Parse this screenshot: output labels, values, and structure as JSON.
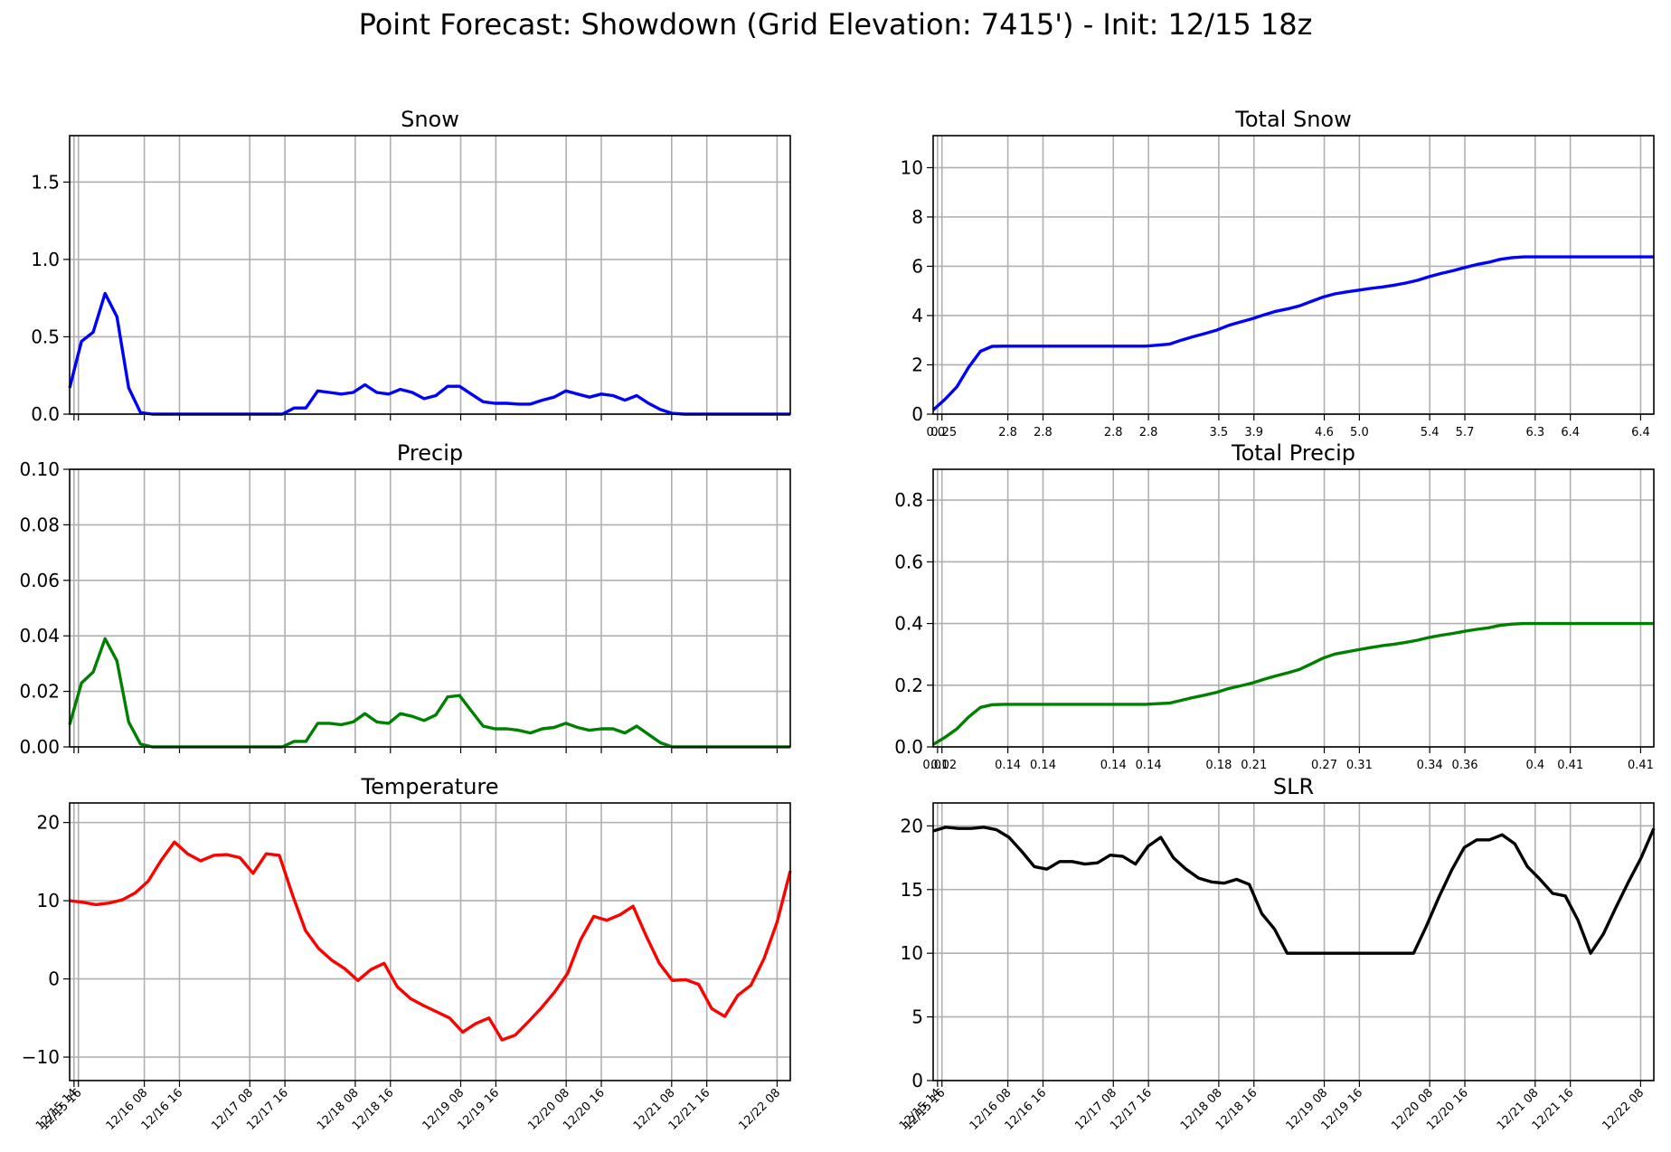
{
  "title": "Point Forecast: Showdown (Grid Elevation: 7415') - Init: 12/15 18z",
  "time_ticks": [
    "12/15 14",
    "12/15 16",
    "12/16 08",
    "12/16 16",
    "12/17 08",
    "12/17 16",
    "12/18 08",
    "12/18 16",
    "12/19 08",
    "12/19 16",
    "12/20 08",
    "12/20 16",
    "12/21 08",
    "12/21 16",
    "12/22 08"
  ],
  "colors": {
    "snow": "#0000ff",
    "precip": "#008000",
    "temperature": "#ff0000",
    "slr": "#000000",
    "grid": "#b0b0b0"
  },
  "chart_data": [
    {
      "id": "snow",
      "type": "line",
      "title": "Snow",
      "ylim": [
        0,
        1.8
      ],
      "yticks": [
        "0.0",
        "0.5",
        "1.0",
        "1.5"
      ],
      "xlim": [
        0,
        61
      ],
      "grid": true,
      "x_tick_labels": "time_ticks",
      "x_tick_labels_visible": false,
      "series": [
        {
          "values": [
            0.17,
            0.47,
            0.53,
            0.78,
            0.63,
            0.17,
            0.01,
            0,
            0,
            0,
            0,
            0,
            0,
            0,
            0,
            0,
            0,
            0,
            0,
            0.04,
            0.04,
            0.15,
            0.14,
            0.13,
            0.14,
            0.19,
            0.14,
            0.13,
            0.16,
            0.14,
            0.1,
            0.12,
            0.18,
            0.18,
            0.13,
            0.08,
            0.07,
            0.07,
            0.065,
            0.065,
            0.09,
            0.11,
            0.15,
            0.13,
            0.11,
            0.13,
            0.12,
            0.09,
            0.12,
            0.07,
            0.03,
            0.005,
            0,
            0,
            0,
            0,
            0,
            0,
            0,
            0,
            0,
            0
          ]
        }
      ]
    },
    {
      "id": "total_snow",
      "type": "line",
      "title": "Total Snow",
      "ylim": [
        0,
        11.3
      ],
      "yticks": [
        "0",
        "2",
        "4",
        "6",
        "8",
        "10"
      ],
      "xlim": [
        0,
        61
      ],
      "grid": true,
      "x_tick_labels": [
        "0.0",
        "0.25",
        "2.8",
        "2.8",
        "2.8",
        "2.8",
        "3.5",
        "3.9",
        "4.6",
        "5.0",
        "5.4",
        "5.7",
        "6.3",
        "6.4",
        "6.4"
      ],
      "series": [
        {
          "values": [
            0.17,
            0.6,
            1.1,
            1.9,
            2.55,
            2.75,
            2.76,
            2.76,
            2.76,
            2.76,
            2.76,
            2.76,
            2.76,
            2.76,
            2.76,
            2.76,
            2.76,
            2.76,
            2.76,
            2.8,
            2.84,
            3.0,
            3.14,
            3.27,
            3.41,
            3.6,
            3.74,
            3.87,
            4.03,
            4.17,
            4.27,
            4.39,
            4.57,
            4.75,
            4.88,
            4.96,
            5.03,
            5.1,
            5.16,
            5.23,
            5.32,
            5.43,
            5.58,
            5.71,
            5.82,
            5.95,
            6.07,
            6.16,
            6.28,
            6.35,
            6.38,
            6.38,
            6.38,
            6.38,
            6.38,
            6.38,
            6.38,
            6.38,
            6.38,
            6.38,
            6.38,
            6.38
          ]
        }
      ]
    },
    {
      "id": "precip",
      "type": "line",
      "title": "Precip",
      "ylim": [
        0,
        0.1
      ],
      "yticks": [
        "0.00",
        "0.02",
        "0.04",
        "0.06",
        "0.08",
        "0.10"
      ],
      "xlim": [
        0,
        61
      ],
      "grid": true,
      "x_tick_labels": "time_ticks",
      "x_tick_labels_visible": false,
      "series": [
        {
          "values": [
            0.008,
            0.023,
            0.027,
            0.039,
            0.031,
            0.009,
            0.001,
            0,
            0,
            0,
            0,
            0,
            0,
            0,
            0,
            0,
            0,
            0,
            0,
            0.002,
            0.002,
            0.0085,
            0.0085,
            0.008,
            0.009,
            0.012,
            0.009,
            0.0085,
            0.012,
            0.011,
            0.0095,
            0.0115,
            0.018,
            0.0185,
            0.013,
            0.0075,
            0.0065,
            0.0065,
            0.006,
            0.005,
            0.0065,
            0.007,
            0.0085,
            0.007,
            0.006,
            0.0065,
            0.0065,
            0.005,
            0.0075,
            0.0045,
            0.0015,
            0,
            0,
            0,
            0,
            0,
            0,
            0,
            0,
            0,
            0,
            0
          ]
        }
      ]
    },
    {
      "id": "total_precip",
      "type": "line",
      "title": "Total Precip",
      "ylim": [
        0,
        0.9
      ],
      "yticks": [
        "0.0",
        "0.2",
        "0.4",
        "0.6",
        "0.8"
      ],
      "xlim": [
        0,
        61
      ],
      "grid": true,
      "x_tick_labels": [
        "0.01",
        "0.02",
        "0.14",
        "0.14",
        "0.14",
        "0.14",
        "0.18",
        "0.21",
        "0.27",
        "0.31",
        "0.34",
        "0.36",
        "0.4",
        "0.41",
        "0.41"
      ],
      "series": [
        {
          "values": [
            0.008,
            0.031,
            0.058,
            0.097,
            0.128,
            0.137,
            0.138,
            0.138,
            0.138,
            0.138,
            0.138,
            0.138,
            0.138,
            0.138,
            0.138,
            0.138,
            0.138,
            0.138,
            0.138,
            0.14,
            0.142,
            0.151,
            0.16,
            0.168,
            0.177,
            0.189,
            0.198,
            0.207,
            0.219,
            0.23,
            0.24,
            0.251,
            0.269,
            0.288,
            0.301,
            0.308,
            0.315,
            0.322,
            0.328,
            0.333,
            0.339,
            0.346,
            0.355,
            0.362,
            0.368,
            0.375,
            0.381,
            0.386,
            0.394,
            0.398,
            0.4,
            0.4,
            0.4,
            0.4,
            0.4,
            0.4,
            0.4,
            0.4,
            0.4,
            0.4,
            0.4,
            0.4
          ]
        }
      ]
    },
    {
      "id": "temperature",
      "type": "line",
      "title": "Temperature",
      "ylim": [
        -13,
        22.5
      ],
      "yticks": [
        "−10",
        "0",
        "10",
        "20"
      ],
      "xlim": [
        0,
        61
      ],
      "grid": true,
      "x_tick_labels": "time_ticks",
      "series": [
        {
          "values": [
            10,
            9.8,
            9.5,
            9.7,
            10.1,
            11,
            12.5,
            15.2,
            17.5,
            16,
            15.1,
            15.8,
            15.9,
            15.5,
            13.5,
            16,
            15.8,
            10.8,
            6.2,
            3.9,
            2.4,
            1.3,
            -0.2,
            1.2,
            2,
            -1,
            -2.5,
            -3.4,
            -4.2,
            -5,
            -6.8,
            -5.7,
            -5,
            -7.8,
            -7.2,
            -5.5,
            -3.7,
            -1.7,
            0.7,
            5,
            8,
            7.5,
            8.2,
            9.3,
            5.5,
            2,
            -0.2,
            -0.1,
            -0.7,
            -3.8,
            -4.8,
            -2.1,
            -0.8,
            2.6,
            7.3,
            13.8
          ]
        }
      ]
    },
    {
      "id": "slr",
      "type": "line",
      "title": "SLR",
      "ylim": [
        0,
        21.8
      ],
      "yticks": [
        "0",
        "5",
        "10",
        "15",
        "20"
      ],
      "xlim": [
        0,
        61
      ],
      "grid": true,
      "x_tick_labels": "time_ticks",
      "series": [
        {
          "values": [
            19.6,
            19.9,
            19.8,
            19.8,
            19.9,
            19.7,
            19.1,
            18.0,
            16.8,
            16.6,
            17.2,
            17.2,
            17.0,
            17.1,
            17.7,
            17.6,
            17.0,
            18.4,
            19.1,
            17.5,
            16.6,
            15.9,
            15.6,
            15.5,
            15.8,
            15.4,
            13.1,
            11.9,
            10.0,
            10.0,
            10.0,
            10.0,
            10.0,
            10.0,
            10.0,
            10.0,
            10.0,
            10.0,
            10.0,
            12.1,
            14.4,
            16.5,
            18.3,
            18.9,
            18.9,
            19.3,
            18.6,
            16.8,
            15.8,
            14.7,
            14.5,
            12.6,
            10.0,
            11.5,
            13.6,
            15.6,
            17.5,
            19.8
          ]
        }
      ]
    }
  ]
}
